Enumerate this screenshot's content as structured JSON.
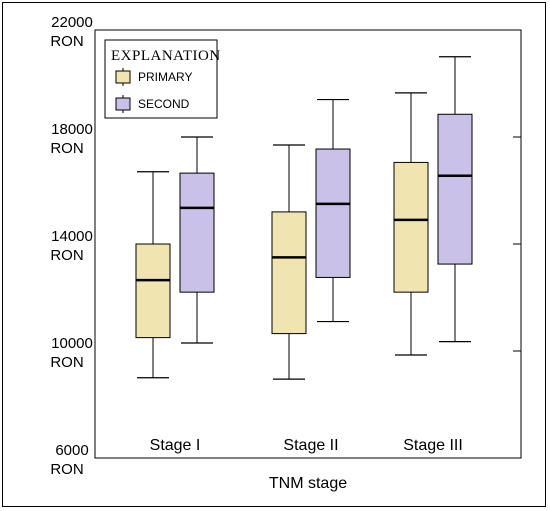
{
  "chart_data": {
    "type": "boxplot",
    "xlabel": "TNM stage",
    "ylabel": "",
    "categories": [
      "Stage I",
      "Stage II",
      "Stage III"
    ],
    "ylim": [
      6000,
      22000
    ],
    "yticks": [
      {
        "value": 6000,
        "line1": "6000",
        "line2": "RON"
      },
      {
        "value": 10000,
        "line1": "10000",
        "line2": "RON"
      },
      {
        "value": 14000,
        "line1": "14000",
        "line2": "RON"
      },
      {
        "value": 18000,
        "line1": "18000",
        "line2": "RON"
      },
      {
        "value": 22000,
        "line1": "22000",
        "line2": "RON"
      }
    ],
    "legend": {
      "title": "EXPLANATION",
      "position": "top-left"
    },
    "series": [
      {
        "name": "PRIMARY",
        "color": "#f0e4b0",
        "boxes": [
          {
            "min": 9000,
            "q1": 10500,
            "median": 12650,
            "q3": 14000,
            "max": 16700
          },
          {
            "min": 8950,
            "q1": 10650,
            "median": 13500,
            "q3": 15200,
            "max": 17700
          },
          {
            "min": 9850,
            "q1": 12200,
            "median": 14900,
            "q3": 17050,
            "max": 19650
          }
        ]
      },
      {
        "name": "SECOND",
        "color": "#c9c1e8",
        "boxes": [
          {
            "min": 10300,
            "q1": 12200,
            "median": 15350,
            "q3": 16650,
            "max": 18000
          },
          {
            "min": 11100,
            "q1": 12750,
            "median": 15500,
            "q3": 17550,
            "max": 19400
          },
          {
            "min": 10350,
            "q1": 13250,
            "median": 16550,
            "q3": 18850,
            "max": 21000
          }
        ]
      }
    ]
  }
}
